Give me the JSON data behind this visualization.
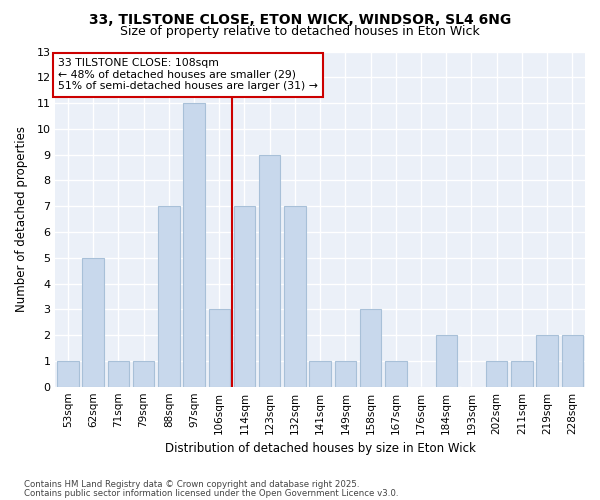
{
  "title_line1": "33, TILSTONE CLOSE, ETON WICK, WINDSOR, SL4 6NG",
  "title_line2": "Size of property relative to detached houses in Eton Wick",
  "categories": [
    "53sqm",
    "62sqm",
    "71sqm",
    "79sqm",
    "88sqm",
    "97sqm",
    "106sqm",
    "114sqm",
    "123sqm",
    "132sqm",
    "141sqm",
    "149sqm",
    "158sqm",
    "167sqm",
    "176sqm",
    "184sqm",
    "193sqm",
    "202sqm",
    "211sqm",
    "219sqm",
    "228sqm"
  ],
  "values": [
    1,
    5,
    1,
    1,
    7,
    11,
    3,
    7,
    9,
    7,
    1,
    1,
    3,
    1,
    0,
    2,
    0,
    1,
    1,
    2,
    2
  ],
  "bar_color": "#C8D8EC",
  "bar_edge_color": "#A8C0D8",
  "bar_width": 0.85,
  "vline_x": 6.5,
  "vline_color": "#CC0000",
  "ylabel": "Number of detached properties",
  "xlabel": "Distribution of detached houses by size in Eton Wick",
  "ylim": [
    0,
    13
  ],
  "yticks": [
    0,
    1,
    2,
    3,
    4,
    5,
    6,
    7,
    8,
    9,
    10,
    11,
    12,
    13
  ],
  "annotation_title": "33 TILSTONE CLOSE: 108sqm",
  "annotation_line2": "← 48% of detached houses are smaller (29)",
  "annotation_line3": "51% of semi-detached houses are larger (31) →",
  "annotation_box_color": "#FFFFFF",
  "annotation_box_edge": "#CC0000",
  "footnote1": "Contains HM Land Registry data © Crown copyright and database right 2025.",
  "footnote2": "Contains public sector information licensed under the Open Government Licence v3.0.",
  "bg_color": "#EBF0F8",
  "grid_color": "#FFFFFF",
  "fig_bg": "#FFFFFF"
}
